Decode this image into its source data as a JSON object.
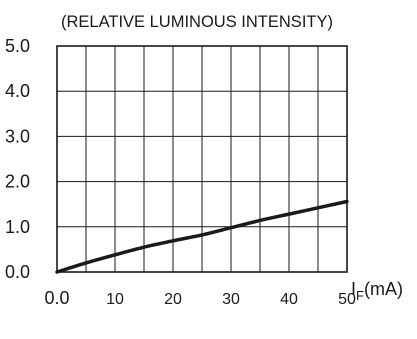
{
  "chart_data": {
    "type": "line",
    "title": "(RELATIVE LUMINOUS INTENSITY)",
    "xlabel_main": "I",
    "xlabel_sub": "F",
    "xlabel_unit": "(mA)",
    "x_ticks": [
      "0.0",
      "10",
      "20",
      "30",
      "40",
      "50"
    ],
    "y_ticks": [
      "0.0",
      "1.0",
      "2.0",
      "3.0",
      "4.0",
      "5.0"
    ],
    "xlim": [
      0,
      50
    ],
    "ylim": [
      0,
      5
    ],
    "grid": true,
    "series": [
      {
        "x": [
          0,
          5,
          10,
          15,
          20,
          25,
          30,
          35,
          40,
          45,
          50
        ],
        "y": [
          0,
          0.2,
          0.38,
          0.55,
          0.69,
          0.82,
          0.98,
          1.14,
          1.28,
          1.42,
          1.56
        ]
      }
    ]
  }
}
